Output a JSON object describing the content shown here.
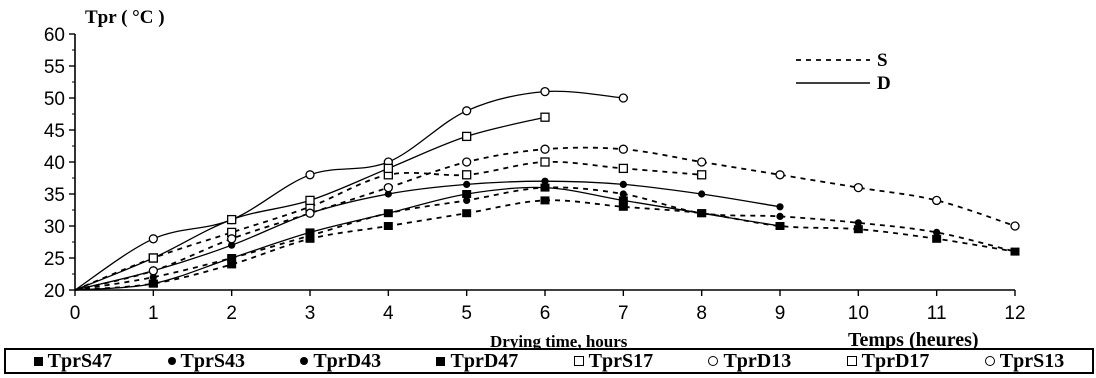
{
  "chart_data": {
    "type": "line",
    "ylabel": "Tpr ( °C )",
    "xlabel": "Drying time, hours",
    "xlabel_alt": "Temps (heures)",
    "xlim": [
      0,
      12
    ],
    "ylim": [
      20,
      60
    ],
    "x_ticks": [
      "0",
      "1",
      "2",
      "3",
      "4",
      "5",
      "6",
      "7",
      "8",
      "9",
      "10",
      "11",
      "12"
    ],
    "y_ticks": [
      "20",
      "25",
      "30",
      "35",
      "40",
      "45",
      "50",
      "55",
      "60"
    ],
    "grid": false,
    "line_key": [
      {
        "label": "S",
        "style": "dashed"
      },
      {
        "label": "D",
        "style": "solid"
      }
    ],
    "series": [
      {
        "name": "TprS47",
        "marker": "filled-square",
        "line": "dashed",
        "x": [
          0,
          1,
          2,
          3,
          4,
          5,
          6,
          7,
          8,
          9,
          10,
          11,
          12
        ],
        "y": [
          20,
          21,
          24,
          28,
          30,
          32,
          34,
          33,
          32,
          30,
          29.5,
          28,
          26
        ]
      },
      {
        "name": "TprS43",
        "marker": "filled-circle",
        "line": "dashed",
        "x": [
          0,
          1,
          2,
          3,
          4,
          5,
          6,
          7,
          8,
          9,
          10,
          11,
          12
        ],
        "y": [
          20,
          22,
          25,
          28.5,
          32,
          34,
          36,
          35,
          32,
          31.5,
          30.5,
          29,
          26
        ]
      },
      {
        "name": "TprD43",
        "marker": "filled-circle",
        "line": "solid",
        "x": [
          0,
          1,
          2,
          3,
          4,
          5,
          6,
          7,
          8,
          9
        ],
        "y": [
          20,
          23,
          27,
          32,
          35,
          36.5,
          37,
          36.5,
          35,
          33
        ]
      },
      {
        "name": "TprD47",
        "marker": "filled-square",
        "line": "solid",
        "x": [
          0,
          1,
          2,
          3,
          4,
          5,
          6,
          7,
          8,
          9
        ],
        "y": [
          20,
          21,
          25,
          29,
          32,
          35,
          36,
          34,
          32,
          30
        ]
      },
      {
        "name": "TprS17",
        "marker": "open-square",
        "line": "dashed",
        "x": [
          0,
          1,
          2,
          3,
          4,
          5,
          6,
          7,
          8
        ],
        "y": [
          20,
          25,
          29,
          33,
          38,
          38,
          40,
          39,
          38
        ]
      },
      {
        "name": "TprD13",
        "marker": "open-circle",
        "line": "solid",
        "x": [
          0,
          1,
          2,
          3,
          4,
          5,
          6,
          7
        ],
        "y": [
          20,
          28,
          31,
          38,
          40,
          48,
          51,
          50
        ]
      },
      {
        "name": "TprD17",
        "marker": "open-square",
        "line": "solid",
        "x": [
          0,
          1,
          2,
          3,
          4,
          5,
          6
        ],
        "y": [
          20,
          25,
          31,
          34,
          39,
          44,
          47
        ]
      },
      {
        "name": "TprS13",
        "marker": "open-circle",
        "line": "dashed",
        "x": [
          0,
          1,
          2,
          3,
          4,
          5,
          6,
          7,
          8,
          9,
          10,
          11,
          12
        ],
        "y": [
          20,
          23,
          28,
          32,
          36,
          40,
          42,
          42,
          40,
          38,
          36,
          34,
          30
        ]
      }
    ]
  }
}
